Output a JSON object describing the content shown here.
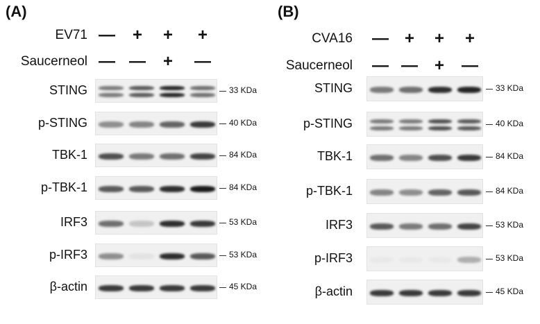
{
  "panels": [
    {
      "letter": "(A)",
      "conditions": [
        {
          "label": "EV71",
          "signs": [
            "—",
            "+",
            "+",
            "+"
          ]
        },
        {
          "label": "Saucerneol",
          "signs": [
            "—",
            "—",
            "+",
            "—"
          ]
        }
      ],
      "blots": [
        {
          "label": "STING",
          "mw": "33 KDa",
          "intensities": [
            0.55,
            0.7,
            0.95,
            0.6
          ],
          "double": true
        },
        {
          "label": "p-STING",
          "mw": "40 KDa",
          "intensities": [
            0.45,
            0.5,
            0.65,
            0.85
          ],
          "double": false
        },
        {
          "label": "TBK-1",
          "mw": "84 KDa",
          "intensities": [
            0.75,
            0.55,
            0.6,
            0.8
          ],
          "double": false
        },
        {
          "label": "p-TBK-1",
          "mw": "84 KDa",
          "intensities": [
            0.7,
            0.7,
            0.9,
            1.0
          ],
          "double": false
        },
        {
          "label": "IRF3",
          "mw": "53 KDa",
          "intensities": [
            0.6,
            0.2,
            0.9,
            0.85
          ],
          "double": false
        },
        {
          "label": "p-IRF3",
          "mw": "53 KDa",
          "intensities": [
            0.45,
            0.06,
            0.9,
            0.7
          ],
          "double": false
        },
        {
          "label": "β-actin",
          "mw": "45 KDa",
          "intensities": [
            0.85,
            0.85,
            0.85,
            0.85
          ],
          "double": false
        }
      ]
    },
    {
      "letter": "(B)",
      "conditions": [
        {
          "label": "CVA16",
          "signs": [
            "—",
            "+",
            "+",
            "+"
          ]
        },
        {
          "label": "Saucerneol",
          "signs": [
            "—",
            "—",
            "+",
            "—"
          ]
        }
      ],
      "blots": [
        {
          "label": "STING",
          "mw": "33 KDa",
          "intensities": [
            0.55,
            0.6,
            0.9,
            0.95
          ],
          "double": false
        },
        {
          "label": "p-STING",
          "mw": "40 KDa",
          "intensities": [
            0.55,
            0.55,
            0.75,
            0.7
          ],
          "double": true
        },
        {
          "label": "TBK-1",
          "mw": "84 KDa",
          "intensities": [
            0.6,
            0.5,
            0.75,
            0.85
          ],
          "double": false
        },
        {
          "label": "p-TBK-1",
          "mw": "84 KDa",
          "intensities": [
            0.5,
            0.45,
            0.65,
            0.7
          ],
          "double": false
        },
        {
          "label": "IRF3",
          "mw": "53 KDa",
          "intensities": [
            0.7,
            0.55,
            0.6,
            0.8
          ],
          "double": false
        },
        {
          "label": "p-IRF3",
          "mw": "53 KDa",
          "intensities": [
            0.03,
            0.03,
            0.03,
            0.3
          ],
          "double": false
        },
        {
          "label": "β-actin",
          "mw": "45 KDa",
          "intensities": [
            0.85,
            0.85,
            0.85,
            0.85
          ],
          "double": false
        }
      ]
    }
  ],
  "colors": {
    "band": "#1a1a1a",
    "strip": "#f0f0f0"
  }
}
